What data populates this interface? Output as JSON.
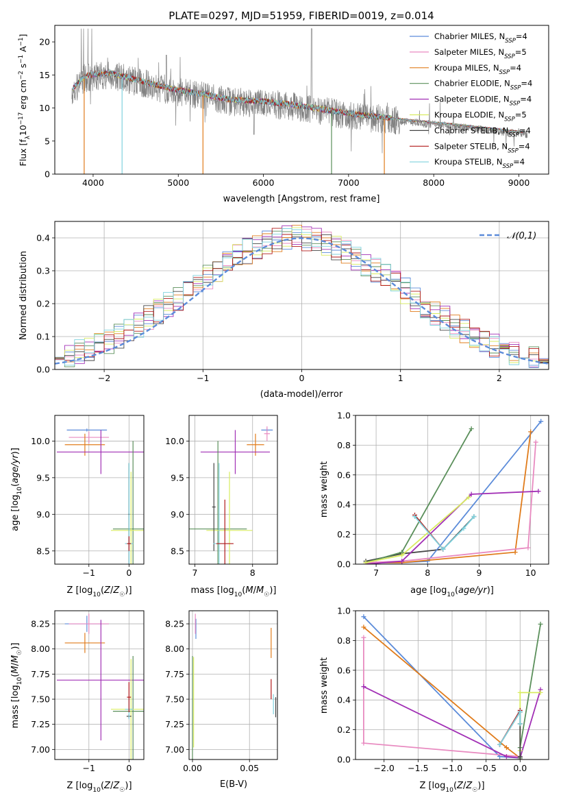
{
  "series_styles": [
    {
      "name": "Chabrier MILES",
      "color": "#5b8bd9"
    },
    {
      "name": "Salpeter MILES",
      "color": "#e88ac0"
    },
    {
      "name": "Kroupa MILES",
      "color": "#e07b1a"
    },
    {
      "name": "Chabrier ELODIE",
      "color": "#5a8f5a"
    },
    {
      "name": "Salpeter ELODIE",
      "color": "#a12fb5"
    },
    {
      "name": "Kroupa ELODIE",
      "color": "#d8ec60"
    },
    {
      "name": "Chabrier STELIB",
      "color": "#444444"
    },
    {
      "name": "Salpeter STELIB",
      "color": "#b01818"
    },
    {
      "name": "Kroupa STELIB",
      "color": "#7fd2de"
    }
  ],
  "chart_data": [
    {
      "id": "spectrum",
      "type": "line",
      "title": "PLATE=0297, MJD=51959, FIBERID=0019, z=0.014",
      "xlabel": "wavelength [Angstrom, rest frame]",
      "ylabel": "Flux [f_λ10^-17 erg cm^-2 s^-1 A^-1]",
      "xlim": [
        3550,
        9350
      ],
      "ylim": [
        0,
        22.5
      ],
      "xticks": [
        4000,
        5000,
        6000,
        7000,
        8000,
        9000
      ],
      "yticks": [
        0,
        5,
        10,
        15,
        20
      ],
      "grid": false,
      "legend_position": "top-right",
      "legend": [
        {
          "model": "Chabrier MILES",
          "nssp": "4"
        },
        {
          "model": "Salpeter MILES",
          "nssp": "5"
        },
        {
          "model": "Kroupa MILES",
          "nssp": "4"
        },
        {
          "model": "Chabrier ELODIE",
          "nssp": "4"
        },
        {
          "model": "Salpeter ELODIE",
          "nssp": "4"
        },
        {
          "model": "Kroupa ELODIE",
          "nssp": "5"
        },
        {
          "model": "Chabrier STELIB",
          "nssp": "4"
        },
        {
          "model": "Salpeter STELIB",
          "nssp": "4"
        },
        {
          "model": "Kroupa STELIB",
          "nssp": "4"
        }
      ],
      "data_flux_continuum": {
        "x": [
          3750,
          3900,
          4000,
          4200,
          4500,
          4800,
          5000,
          5300,
          5600,
          6000,
          6300,
          6600,
          7000,
          7400,
          7700,
          8000,
          8400,
          8800,
          9100
        ],
        "y": [
          12.5,
          14.5,
          14.8,
          15.0,
          14.0,
          13.0,
          12.4,
          11.8,
          11.0,
          10.7,
          10.3,
          9.7,
          8.9,
          8.3,
          7.9,
          7.5,
          7.0,
          6.4,
          6.0
        ]
      },
      "data_wavelength_range": [
        3750,
        9100
      ],
      "model_wavelength_range": [
        3760,
        9050
      ]
    },
    {
      "id": "residuals",
      "type": "line",
      "xlabel": "(data-model)/error",
      "ylabel": "Normed distribution",
      "xlim": [
        -2.5,
        2.5
      ],
      "ylim": [
        0,
        0.45
      ],
      "xticks": [
        -2,
        -1,
        0,
        1,
        2
      ],
      "yticks": [
        0.0,
        0.1,
        0.2,
        0.3,
        0.4
      ],
      "grid": true,
      "legend_position": "top-right",
      "reference_curve": {
        "label": "𝒩(0,1)",
        "mean": 0,
        "sigma": 1
      },
      "histogram_bins": {
        "start": -2.5,
        "width": 0.1,
        "count": 50
      }
    },
    {
      "id": "z-age",
      "type": "scatter",
      "xlabel": "Z [log10(Z/Z☉)]",
      "ylabel": "age [log10(age/yr)]",
      "xlim": [
        -1.85,
        0.37
      ],
      "ylim": [
        8.32,
        10.35
      ],
      "xticks": [
        -1,
        0
      ],
      "yticks": [
        8.5,
        9.0,
        9.5,
        10.0
      ],
      "grid": true,
      "errorbars": [
        {
          "series": "Chabrier MILES",
          "x": -1.05,
          "xerr": 0.5,
          "y": 10.15,
          "yerr": 0.02
        },
        {
          "series": "Salpeter MILES",
          "x": -1.0,
          "xerr": 0.5,
          "y": 10.05,
          "yerr": 0.08
        },
        {
          "series": "Kroupa MILES",
          "x": -1.1,
          "xerr": 0.5,
          "y": 9.95,
          "yerr": 0.15
        },
        {
          "series": "Salpeter ELODIE",
          "x": -0.7,
          "xerr": 1.1,
          "y": 9.85,
          "yerr": 0.3
        },
        {
          "series": "Chabrier ELODIE",
          "x": 0.1,
          "xerr": 0.5,
          "y": 8.8,
          "yerr": 1.2
        },
        {
          "series": "Kroupa ELODIE",
          "x": 0.05,
          "xerr": 0.5,
          "y": 8.78,
          "yerr": 0.8
        },
        {
          "series": "Chabrier STELIB",
          "x": 0.0,
          "xerr": 0.02,
          "y": 9.0,
          "yerr": 0.7
        },
        {
          "series": "Kroupa STELIB",
          "x": 0.0,
          "xerr": 0.1,
          "y": 8.6,
          "yerr": 1.1
        },
        {
          "series": "Salpeter STELIB",
          "x": 0.0,
          "xerr": 0.05,
          "y": 8.6,
          "yerr": 0.1
        }
      ]
    },
    {
      "id": "mass-age",
      "type": "scatter",
      "xlabel": "mass [log10(M/M☉)]",
      "ylabel": "",
      "xlim": [
        6.9,
        8.43
      ],
      "ylim": [
        8.32,
        10.35
      ],
      "xticks": [
        7,
        8
      ],
      "yticks": [
        8.5,
        9.0,
        9.5,
        10.0
      ],
      "grid": true,
      "errorbars": [
        {
          "series": "Chabrier MILES",
          "x": 8.25,
          "xerr": 0.1,
          "y": 10.15,
          "yerr": 0.02
        },
        {
          "series": "Salpeter MILES",
          "x": 8.25,
          "xerr": 0.05,
          "y": 10.1,
          "yerr": 0.1
        },
        {
          "series": "Kroupa MILES",
          "x": 8.05,
          "xerr": 0.15,
          "y": 9.95,
          "yerr": 0.15
        },
        {
          "series": "Salpeter ELODIE",
          "x": 7.7,
          "xerr": 0.6,
          "y": 9.85,
          "yerr": 0.3
        },
        {
          "series": "Chabrier ELODIE",
          "x": 7.4,
          "xerr": 0.5,
          "y": 8.8,
          "yerr": 1.2
        },
        {
          "series": "Kroupa ELODIE",
          "x": 7.6,
          "xerr": 0.4,
          "y": 8.78,
          "yerr": 0.8
        },
        {
          "series": "Chabrier STELIB",
          "x": 7.33,
          "xerr": 0.03,
          "y": 9.1,
          "yerr": 0.6
        },
        {
          "series": "Kroupa STELIB",
          "x": 7.42,
          "xerr": 0.1,
          "y": 8.6,
          "yerr": 1.1
        },
        {
          "series": "Salpeter STELIB",
          "x": 7.52,
          "xerr": 0.15,
          "y": 8.6,
          "yerr": 0.6
        }
      ]
    },
    {
      "id": "age-weight",
      "type": "line",
      "xlabel": "age [log10(age/yr)]",
      "ylabel": "mass weight",
      "xlim": [
        6.6,
        10.35
      ],
      "ylim": [
        0,
        1.0
      ],
      "xticks": [
        7,
        8,
        9,
        10
      ],
      "yticks": [
        0.0,
        0.2,
        0.4,
        0.6,
        0.8,
        1.0
      ],
      "grid": true,
      "series": [
        {
          "name": "Chabrier STELIB",
          "x": [
            6.8,
            7.5,
            8.3,
            8.9
          ],
          "y": [
            0.02,
            0.07,
            0.1,
            0.32
          ]
        },
        {
          "name": "Chabrier MILES",
          "x": [
            6.8,
            7.5,
            8.0,
            10.2
          ],
          "y": [
            0.01,
            0.01,
            0.02,
            0.96
          ]
        },
        {
          "name": "Kroupa MILES",
          "x": [
            6.8,
            7.5,
            9.7,
            10.0
          ],
          "y": [
            0.01,
            0.01,
            0.08,
            0.89
          ]
        },
        {
          "name": "Salpeter MILES",
          "x": [
            6.8,
            7.5,
            9.95,
            10.1
          ],
          "y": [
            0.01,
            0.02,
            0.11,
            0.82
          ]
        },
        {
          "name": "Chabrier ELODIE",
          "x": [
            6.8,
            7.5,
            8.85
          ],
          "y": [
            0.01,
            0.08,
            0.91
          ]
        },
        {
          "name": "Salpeter ELODIE",
          "x": [
            6.8,
            7.5,
            8.85,
            10.15
          ],
          "y": [
            0.0,
            0.02,
            0.47,
            0.49
          ]
        },
        {
          "name": "Kroupa ELODIE",
          "x": [
            6.8,
            7.5,
            8.8
          ],
          "y": [
            0.01,
            0.06,
            0.45
          ]
        },
        {
          "name": "Salpeter STELIB",
          "x": [
            7.75,
            8.3
          ],
          "y": [
            0.33,
            0.1
          ]
        },
        {
          "name": "Kroupa STELIB",
          "x": [
            7.75,
            8.3,
            8.7,
            8.9
          ],
          "y": [
            0.32,
            0.1,
            0.24,
            0.32
          ]
        }
      ]
    },
    {
      "id": "z-mass",
      "type": "scatter",
      "xlabel": "Z [log10(Z/Z☉)]",
      "ylabel": "mass [log10(M/M☉)]",
      "xlim": [
        -1.85,
        0.37
      ],
      "ylim": [
        6.9,
        8.38
      ],
      "xticks": [
        -1,
        0
      ],
      "yticks": [
        7.0,
        7.25,
        7.5,
        7.75,
        8.0,
        8.25
      ],
      "grid": true,
      "errorbars": [
        {
          "series": "Chabrier MILES",
          "x": -1.05,
          "xerr": 0.55,
          "y": 8.25,
          "yerr": 0.08
        },
        {
          "series": "Salpeter MILES",
          "x": -1.0,
          "xerr": 0.5,
          "y": 8.25,
          "yerr": 0.1
        },
        {
          "series": "Kroupa MILES",
          "x": -1.1,
          "xerr": 0.5,
          "y": 8.06,
          "yerr": 0.1
        },
        {
          "series": "Salpeter ELODIE",
          "x": -0.7,
          "xerr": 1.1,
          "y": 7.69,
          "yerr": 0.6
        },
        {
          "series": "Chabrier ELODIE",
          "x": 0.1,
          "xerr": 0.5,
          "y": 7.38,
          "yerr": 0.55
        },
        {
          "series": "Kroupa ELODIE",
          "x": 0.05,
          "xerr": 0.5,
          "y": 7.4,
          "yerr": 0.5
        },
        {
          "series": "Chabrier STELIB",
          "x": 0.0,
          "xerr": 0.06,
          "y": 7.33,
          "yerr": 0.02
        },
        {
          "series": "Kroupa STELIB",
          "x": 0.0,
          "xerr": 0.1,
          "y": 7.4,
          "yerr": 0.1
        },
        {
          "series": "Salpeter STELIB",
          "x": 0.0,
          "xerr": 0.05,
          "y": 7.52,
          "yerr": 0.15
        }
      ]
    },
    {
      "id": "ebv-mass",
      "type": "scatter",
      "xlabel": "E(B-V)",
      "ylabel": "",
      "xlim": [
        -0.003,
        0.0745
      ],
      "ylim": [
        6.9,
        8.38
      ],
      "xticks": [
        0.0,
        0.05
      ],
      "yticks": [
        7.0,
        7.25,
        7.5,
        7.75,
        8.0,
        8.25
      ],
      "grid": true,
      "errorbars": [
        {
          "series": "Chabrier MILES",
          "x": 0.003,
          "xerr": 0.0,
          "y": 8.2,
          "yerr": 0.1
        },
        {
          "series": "Salpeter MILES",
          "x": 0.0025,
          "xerr": 0.0,
          "y": 8.25,
          "yerr": 0.1
        },
        {
          "series": "Kroupa MILES",
          "x": 0.069,
          "xerr": 0.0,
          "y": 8.06,
          "yerr": 0.15
        },
        {
          "series": "Kroupa ELODIE",
          "x": 0.001,
          "xerr": 0.0,
          "y": 7.47,
          "yerr": 0.45
        },
        {
          "series": "Chabrier ELODIE",
          "x": 0.0,
          "xerr": 0.0,
          "y": 7.38,
          "yerr": 0.55
        },
        {
          "series": "Salpeter STELIB",
          "x": 0.069,
          "xerr": 0.0,
          "y": 7.6,
          "yerr": 0.1
        },
        {
          "series": "Chabrier STELIB",
          "x": 0.073,
          "xerr": 0.0,
          "y": 7.42,
          "yerr": 0.1
        },
        {
          "series": "Kroupa STELIB",
          "x": 0.071,
          "xerr": 0.0,
          "y": 7.45,
          "yerr": 0.1
        }
      ]
    },
    {
      "id": "z-weight",
      "type": "line",
      "xlabel": "Z [log10(Z/Z☉)]",
      "ylabel": "mass weight",
      "xlim": [
        -2.42,
        0.42
      ],
      "ylim": [
        0,
        1.0
      ],
      "xticks": [
        -2.0,
        -1.5,
        -1.0,
        -0.5,
        0.0
      ],
      "yticks": [
        0.0,
        0.2,
        0.4,
        0.6,
        0.8,
        1.0
      ],
      "grid": true,
      "series": [
        {
          "name": "Chabrier MILES",
          "x": [
            -2.3,
            -0.3,
            0.0,
            0.0
          ],
          "y": [
            0.96,
            0.02,
            0.01,
            0.0
          ]
        },
        {
          "name": "Kroupa MILES",
          "x": [
            -2.3,
            -0.2,
            0.0,
            0.0
          ],
          "y": [
            0.89,
            0.08,
            0.01,
            0.0
          ]
        },
        {
          "name": "Salpeter MILES",
          "x": [
            -2.3,
            -2.3,
            0.0,
            0.0
          ],
          "y": [
            0.82,
            0.11,
            0.02,
            0.0
          ]
        },
        {
          "name": "Salpeter ELODIE",
          "x": [
            -2.3,
            -0.2,
            0.0,
            0.3
          ],
          "y": [
            0.49,
            0.02,
            0.01,
            0.47
          ]
        },
        {
          "name": "Chabrier ELODIE",
          "x": [
            0.0,
            0.0,
            0.3
          ],
          "y": [
            0.01,
            0.08,
            0.91
          ]
        },
        {
          "name": "Kroupa ELODIE",
          "x": [
            0.0,
            0.0,
            0.3
          ],
          "y": [
            0.06,
            0.45,
            0.45
          ]
        },
        {
          "name": "Chabrier STELIB",
          "x": [
            -0.3,
            0.0,
            0.0,
            0.0
          ],
          "y": [
            0.1,
            0.32,
            0.24,
            0.02
          ]
        },
        {
          "name": "Salpeter STELIB",
          "x": [
            -0.3,
            0.0
          ],
          "y": [
            0.1,
            0.33
          ]
        },
        {
          "name": "Kroupa STELIB",
          "x": [
            -0.3,
            0.0,
            0.0
          ],
          "y": [
            0.1,
            0.32,
            0.24
          ]
        }
      ]
    }
  ]
}
